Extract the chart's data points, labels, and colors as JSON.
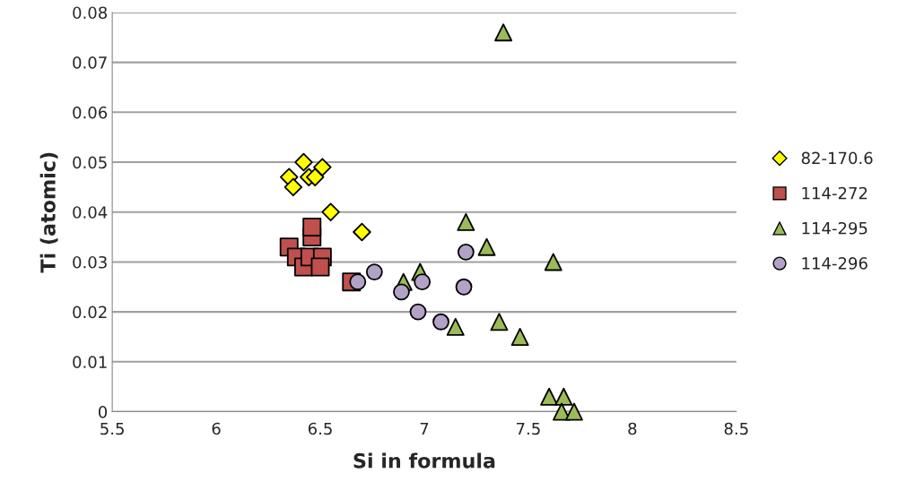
{
  "chart_data": {
    "type": "scatter",
    "xlabel": "Si in formula",
    "ylabel": "Ti (atomic)",
    "xlim": [
      5.5,
      8.5
    ],
    "xticks": [
      5.5,
      6,
      6.5,
      7,
      7.5,
      8,
      8.5
    ],
    "ylim": [
      0,
      0.08
    ],
    "yticks": [
      0,
      0.01,
      0.02,
      0.03,
      0.04,
      0.05,
      0.06,
      0.07,
      0.08
    ],
    "grid": "y",
    "legend": "right",
    "series": [
      {
        "name": "82-170.6",
        "color": "#ffff00",
        "marker": "diamond",
        "x": [
          6.35,
          6.37,
          6.42,
          6.445,
          6.475,
          6.51,
          6.55,
          6.7
        ],
        "values": [
          0.047,
          0.045,
          0.05,
          0.047,
          0.047,
          0.049,
          0.04,
          0.036
        ]
      },
      {
        "name": "114-272",
        "color": "#c0504d",
        "marker": "square",
        "x": [
          6.35,
          6.385,
          6.42,
          6.45,
          6.46,
          6.46,
          6.51,
          6.5,
          6.65
        ],
        "values": [
          0.033,
          0.031,
          0.029,
          0.031,
          0.035,
          0.037,
          0.031,
          0.029,
          0.026
        ]
      },
      {
        "name": "114-295",
        "color": "#9bbb59",
        "marker": "triangle",
        "x": [
          7.38,
          7.2,
          7.3,
          7.62,
          6.9,
          6.98,
          7.15,
          7.36,
          7.46,
          7.6,
          7.67,
          7.66,
          7.72
        ],
        "values": [
          0.076,
          0.038,
          0.033,
          0.03,
          0.026,
          0.028,
          0.017,
          0.018,
          0.015,
          0.003,
          0.003,
          0.0,
          0.0
        ]
      },
      {
        "name": "114-296",
        "color": "#b3a2c7",
        "marker": "circle",
        "x": [
          6.68,
          6.76,
          6.89,
          6.97,
          6.99,
          7.08,
          7.2,
          7.19
        ],
        "values": [
          0.026,
          0.028,
          0.024,
          0.02,
          0.026,
          0.018,
          0.032,
          0.025
        ]
      }
    ]
  }
}
